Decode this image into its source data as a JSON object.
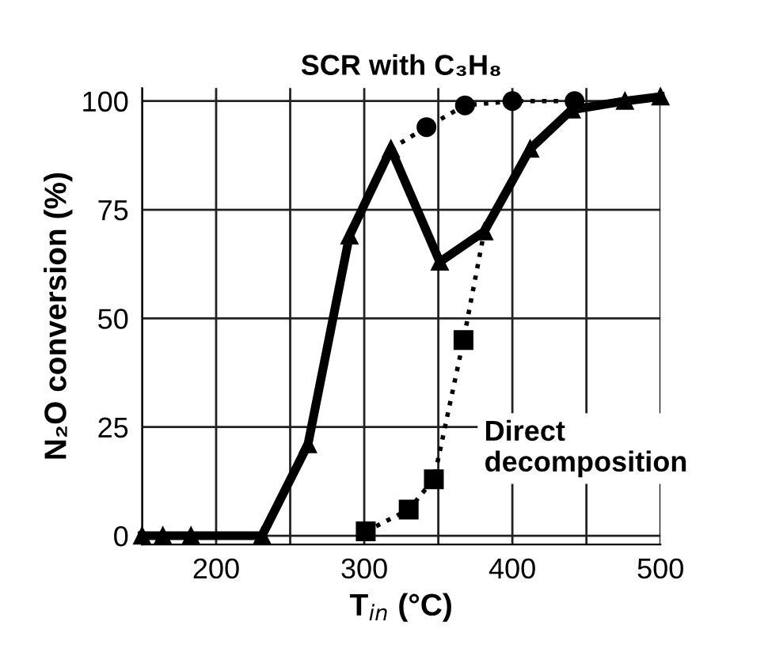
{
  "chart_data": {
    "type": "line",
    "title": "SCR with C₃H₈",
    "xlabel": "T$_{in}$ (°C)",
    "ylabel": "N₂O conversion (%)",
    "annotations": [
      "Direct\ndecomposition"
    ],
    "series": [
      {
        "color": "#000000",
        "marker": "triangle",
        "line_style": "solid",
        "x": [
          150,
          164,
          183,
          231,
          262,
          290,
          318,
          351,
          381,
          412,
          440,
          476,
          500
        ],
        "values": [
          0,
          0,
          0,
          0,
          21,
          69,
          89,
          63,
          70,
          89,
          98,
          100,
          101
        ]
      },
      {
        "color": "#000000",
        "marker": "circle",
        "line_style": "dotted",
        "x": [
          318,
          342,
          368,
          400,
          442
        ],
        "values": [
          89,
          94,
          99,
          100,
          100
        ]
      },
      {
        "color": "#000000",
        "marker": "square",
        "line_style": "dotted",
        "x": [
          301,
          330,
          347,
          367,
          381
        ],
        "values": [
          1,
          6,
          13,
          45,
          70
        ]
      }
    ],
    "xlim": [
      150,
      500
    ],
    "ylim": [
      -2,
      103
    ],
    "xticks": [
      {
        "value": 150,
        "label": null
      },
      200,
      {
        "value": 250,
        "label": null
      },
      300,
      {
        "value": 350,
        "label": null
      },
      400,
      {
        "value": 450,
        "label": null
      },
      500
    ],
    "yticks": [
      0,
      25,
      50,
      75,
      100
    ],
    "grid": true,
    "legend": false
  }
}
